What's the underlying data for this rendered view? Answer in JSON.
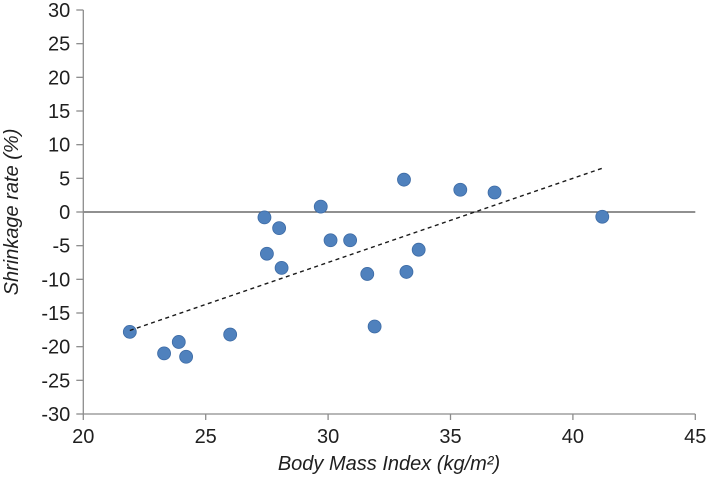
{
  "chart_data": {
    "type": "scatter",
    "title": "",
    "xlabel": "Body Mass Index (kg/m²)",
    "ylabel": "Shrinkage rate (%)",
    "xlim": [
      20,
      45
    ],
    "ylim": [
      -30,
      30
    ],
    "x_ticks": [
      20,
      25,
      30,
      35,
      40,
      45
    ],
    "y_ticks": [
      30,
      25,
      20,
      15,
      10,
      5,
      0,
      -5,
      -10,
      -15,
      -20,
      -25,
      -30
    ],
    "grid": false,
    "legend": false,
    "marker_color": "#4f81bd",
    "marker_edge_color": "#3d6ba5",
    "axis_color": "#8c8c8c",
    "tick_label_color": "#1f1f1f",
    "zero_line_color": "#4d4d4d",
    "points": [
      [
        21.9,
        -17.8
      ],
      [
        23.3,
        -21.0
      ],
      [
        23.9,
        -19.3
      ],
      [
        24.2,
        -21.5
      ],
      [
        26.0,
        -18.2
      ],
      [
        27.4,
        -0.8
      ],
      [
        27.5,
        -6.2
      ],
      [
        28.0,
        -2.4
      ],
      [
        28.1,
        -8.3
      ],
      [
        29.7,
        0.8
      ],
      [
        30.1,
        -4.2
      ],
      [
        30.9,
        -4.2
      ],
      [
        31.6,
        -9.2
      ],
      [
        31.9,
        -17.0
      ],
      [
        33.1,
        4.8
      ],
      [
        33.2,
        -8.9
      ],
      [
        33.7,
        -5.6
      ],
      [
        35.4,
        3.3
      ],
      [
        36.8,
        2.9
      ],
      [
        41.2,
        -0.7
      ]
    ],
    "trend_line": {
      "style": "dashed",
      "color": "#1a1a1a",
      "x1": 21.9,
      "y1": -17.6,
      "x2": 41.2,
      "y2": 6.5
    }
  }
}
